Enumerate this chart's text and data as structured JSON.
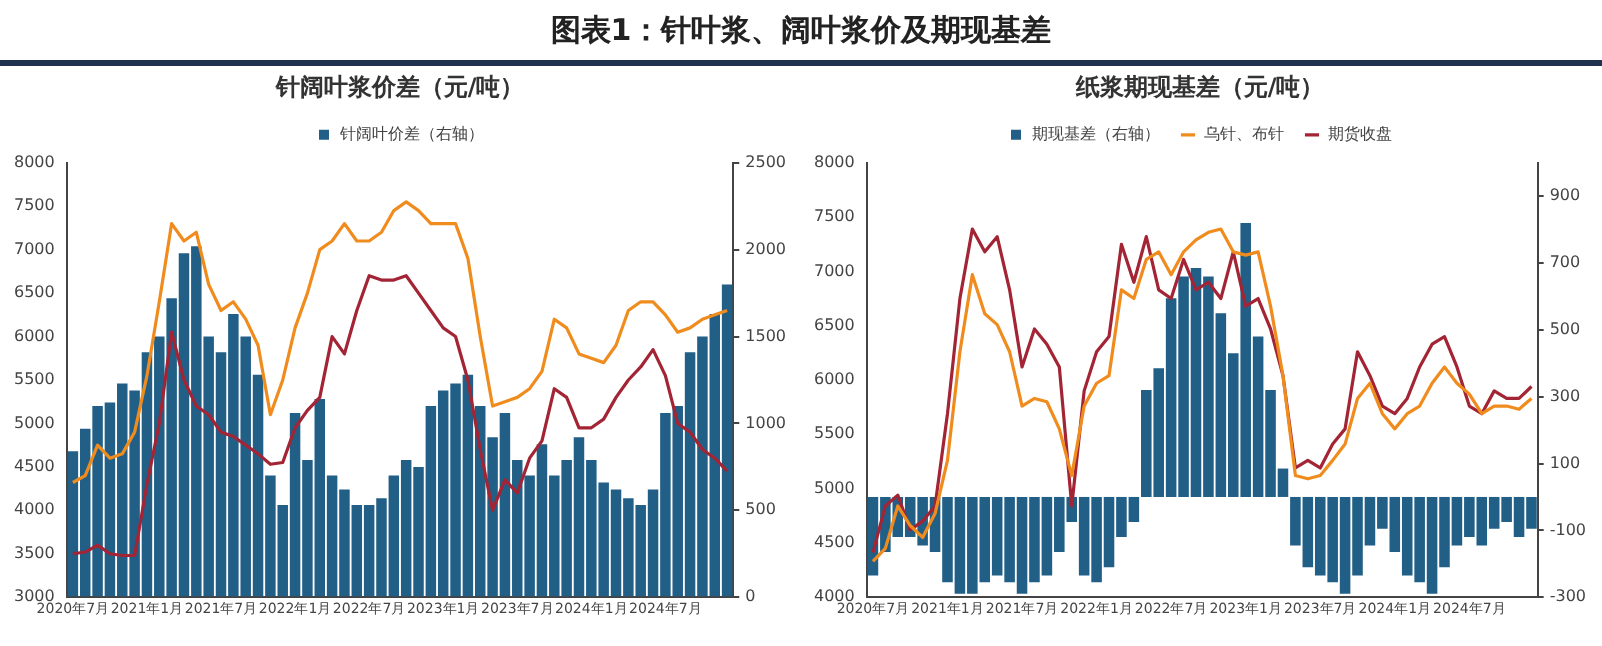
{
  "chart_data": [
    {
      "type": "bar",
      "title": "针阔叶浆价差（元/吨）",
      "annotations": [
        "图表1：针叶浆、阔叶浆价及期现基差"
      ],
      "categories": [
        "2020年7月",
        null,
        null,
        null,
        null,
        null,
        "2021年1月",
        null,
        null,
        null,
        null,
        null,
        "2021年7月",
        null,
        null,
        null,
        null,
        null,
        "2022年1月",
        null,
        null,
        null,
        null,
        null,
        "2022年7月",
        null,
        null,
        null,
        null,
        null,
        "2023年1月",
        null,
        null,
        null,
        null,
        null,
        "2023年7月",
        null,
        null,
        null,
        null,
        null,
        "2024年1月",
        null,
        null,
        null,
        null,
        null,
        "2024年7月",
        null,
        null,
        null,
        null,
        null
      ],
      "series": [
        {
          "name": "针阔叶价差（右轴）",
          "axis": "y2",
          "color": "#215f87",
          "values": [
            840,
            970,
            1100,
            1120,
            1230,
            1190,
            1410,
            1500,
            1720,
            1980,
            2020,
            1500,
            1410,
            1630,
            1500,
            1280,
            700,
            530,
            1060,
            790,
            1140,
            700,
            620,
            530,
            530,
            570,
            700,
            790,
            750,
            1100,
            1190,
            1230,
            1280,
            1100,
            920,
            1060,
            790,
            700,
            880,
            700,
            790,
            920,
            790,
            660,
            620,
            570,
            530,
            620,
            1060,
            1100,
            1410,
            1500,
            1630,
            1800
          ]
        },
        {
          "type": "line",
          "color": "#f08c1e",
          "values": [
            4320,
            4400,
            4750,
            4600,
            4650,
            4900,
            5550,
            6400,
            7300,
            7100,
            7200,
            6600,
            6300,
            6400,
            6200,
            5900,
            5100,
            5500,
            6100,
            6500,
            7000,
            7100,
            7300,
            7100,
            7100,
            7200,
            7450,
            7550,
            7450,
            7300,
            7300,
            7300,
            6900,
            6000,
            5200,
            5250,
            5300,
            5400,
            5600,
            6200,
            6100,
            5800,
            5750,
            5700,
            5900,
            6300,
            6400,
            6400,
            6250,
            6050,
            6100,
            6200,
            6250,
            6300
          ]
        },
        {
          "type": "line",
          "color": "#a32434",
          "values": [
            3500,
            3520,
            3600,
            3500,
            3480,
            3480,
            4300,
            5000,
            6050,
            5500,
            5200,
            5100,
            4900,
            4850,
            4750,
            4650,
            4530,
            4550,
            4950,
            5150,
            5300,
            6000,
            5800,
            6300,
            6700,
            6650,
            6650,
            6700,
            6500,
            6300,
            6100,
            6000,
            5500,
            4700,
            4000,
            4350,
            4200,
            4600,
            4800,
            5400,
            5300,
            4950,
            4950,
            5050,
            5300,
            5500,
            5650,
            5850,
            5550,
            5000,
            4900,
            4700,
            4600,
            4450
          ]
        }
      ],
      "ylim": [
        3000,
        8000
      ],
      "yticks": [
        3000,
        3500,
        4000,
        4500,
        5000,
        5500,
        6000,
        6500,
        7000,
        7500,
        8000
      ],
      "y2lim": [
        0,
        2500
      ],
      "y2ticks": [
        0,
        500,
        1000,
        1500,
        2000,
        2500
      ],
      "grid": false,
      "legend": "top",
      "marker": "none"
    },
    {
      "type": "bar",
      "title": "纸浆期现基差（元/吨）",
      "categories": [
        "2020年7月",
        null,
        null,
        null,
        null,
        null,
        "2021年1月",
        null,
        null,
        null,
        null,
        null,
        "2021年7月",
        null,
        null,
        null,
        null,
        null,
        "2022年1月",
        null,
        null,
        null,
        null,
        null,
        "2022年7月",
        null,
        null,
        null,
        null,
        null,
        "2023年1月",
        null,
        null,
        null,
        null,
        null,
        "2023年7月",
        null,
        null,
        null,
        null,
        null,
        "2024年1月",
        null,
        null,
        null,
        null,
        null,
        "2024年7月",
        null,
        null,
        null,
        null,
        null
      ],
      "series": [
        {
          "name": "期现基差（右轴）",
          "axis": "y2",
          "color": "#215f87",
          "values": [
            -235,
            -165,
            -120,
            -120,
            -145,
            -165,
            -255,
            -290,
            -290,
            -255,
            -235,
            -255,
            -290,
            -255,
            -235,
            -165,
            -75,
            -235,
            -255,
            -210,
            -120,
            -75,
            320,
            385,
            595,
            660,
            685,
            660,
            550,
            430,
            820,
            480,
            320,
            85,
            -145,
            -210,
            -235,
            -255,
            -290,
            -235,
            -145,
            -95,
            -165,
            -235,
            -255,
            -290,
            -210,
            -145,
            -120,
            -145,
            -95,
            -75,
            -120,
            -95
          ]
        },
        {
          "name": "乌针、布针",
          "type": "line",
          "color": "#f08c1e",
          "values": [
            4330,
            4450,
            4840,
            4660,
            4550,
            4770,
            5260,
            6260,
            6970,
            6610,
            6510,
            6260,
            5760,
            5830,
            5800,
            5550,
            5120,
            5760,
            5970,
            6040,
            6830,
            6750,
            7110,
            7180,
            6970,
            7180,
            7290,
            7360,
            7390,
            7180,
            7150,
            7180,
            6680,
            6040,
            5120,
            5090,
            5120,
            5260,
            5410,
            5830,
            5970,
            5690,
            5550,
            5690,
            5760,
            5970,
            6120,
            5970,
            5870,
            5690,
            5760,
            5760,
            5730,
            5830
          ]
        },
        {
          "name": "期货收盘",
          "type": "line",
          "color": "#a32434",
          "values": [
            4410,
            4840,
            4940,
            4620,
            4700,
            4840,
            5690,
            6750,
            7390,
            7180,
            7320,
            6830,
            6120,
            6470,
            6330,
            6120,
            4840,
            5900,
            6260,
            6400,
            7250,
            6900,
            7320,
            6830,
            6750,
            7110,
            6830,
            6900,
            6750,
            7180,
            6680,
            6750,
            6470,
            6040,
            5190,
            5260,
            5190,
            5410,
            5550,
            6260,
            6040,
            5760,
            5690,
            5830,
            6120,
            6330,
            6400,
            6120,
            5760,
            5690,
            5900,
            5830,
            5830,
            5940
          ]
        }
      ],
      "ylim": [
        4000,
        8000
      ],
      "yticks": [
        4000,
        4500,
        5000,
        5500,
        6000,
        6500,
        7000,
        7500,
        8000
      ],
      "y2lim": [
        -300,
        1000
      ],
      "y2ticks": [
        -300,
        -100,
        100,
        300,
        500,
        700,
        900
      ],
      "grid": false,
      "legend": "top",
      "marker": "none"
    }
  ]
}
